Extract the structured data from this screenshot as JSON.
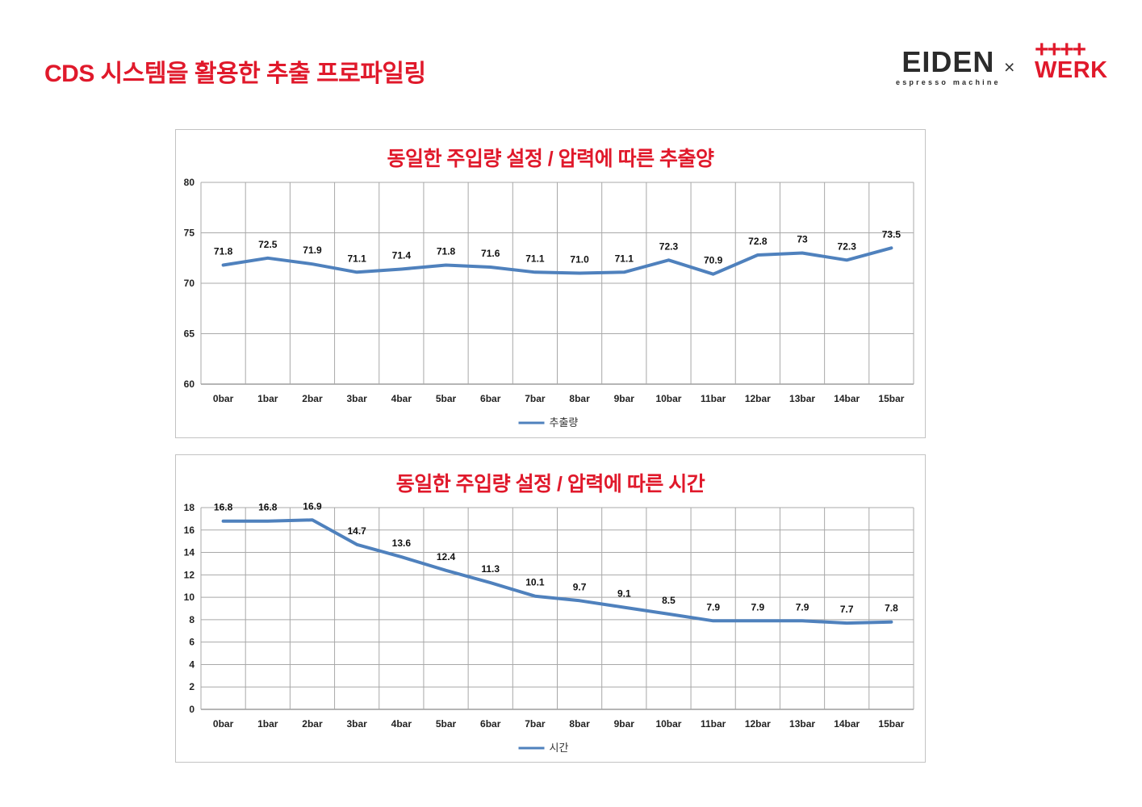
{
  "page": {
    "title": "CDS 시스템을 활용한 추출 프로파일링"
  },
  "header": {
    "logo_eiden": {
      "brand": "EIDEN",
      "brand_sub": "espresso machine"
    },
    "separator": "×",
    "logo_werk": {
      "plus_row": "++++",
      "brand": "WERK"
    }
  },
  "colors": {
    "accent_red": "#E0192B",
    "line_blue": "#4F81BD",
    "grid_gray": "#a8a8a8",
    "axis_gray": "#6b6b6b",
    "label_black": "#111111"
  },
  "chart_data": [
    {
      "type": "line",
      "title": "동일한 주입량 설정 / 압력에 따른 추출양",
      "categories": [
        "0bar",
        "1bar",
        "2bar",
        "3bar",
        "4bar",
        "5bar",
        "6bar",
        "7bar",
        "8bar",
        "9bar",
        "10bar",
        "11bar",
        "12bar",
        "13bar",
        "14bar",
        "15bar"
      ],
      "series": [
        {
          "name": "추출량",
          "values": [
            71.8,
            72.5,
            71.9,
            71.1,
            71.4,
            71.8,
            71.6,
            71.1,
            71.0,
            71.1,
            72.3,
            70.9,
            72.8,
            73,
            72.3,
            73.5
          ],
          "labels": [
            "71.8",
            "72.5",
            "71.9",
            "71.1",
            "71.4",
            "71.8",
            "71.6",
            "71.1",
            "71.0",
            "71.1",
            "72.3",
            "70.9",
            "72.8",
            "73",
            "72.3",
            "73.5"
          ]
        }
      ],
      "xlabel": "",
      "ylabel": "",
      "ylim": [
        60,
        80
      ],
      "ytick_step": 5,
      "grid": "on",
      "legend_position": "bottom"
    },
    {
      "type": "line",
      "title": "동일한 주입량 설정 / 압력에 따른 시간",
      "categories": [
        "0bar",
        "1bar",
        "2bar",
        "3bar",
        "4bar",
        "5bar",
        "6bar",
        "7bar",
        "8bar",
        "9bar",
        "10bar",
        "11bar",
        "12bar",
        "13bar",
        "14bar",
        "15bar"
      ],
      "series": [
        {
          "name": "시간",
          "values": [
            16.8,
            16.8,
            16.9,
            14.7,
            13.6,
            12.4,
            11.3,
            10.1,
            9.7,
            9.1,
            8.5,
            7.9,
            7.9,
            7.9,
            7.7,
            7.8
          ],
          "labels": [
            "16.8",
            "16.8",
            "16.9",
            "14.7",
            "13.6",
            "12.4",
            "11.3",
            "10.1",
            "9.7",
            "9.1",
            "8.5",
            "7.9",
            "7.9",
            "7.9",
            "7.7",
            "7.8"
          ]
        }
      ],
      "xlabel": "",
      "ylabel": "",
      "ylim": [
        0,
        18
      ],
      "ytick_step": 2,
      "grid": "on",
      "legend_position": "bottom"
    }
  ]
}
